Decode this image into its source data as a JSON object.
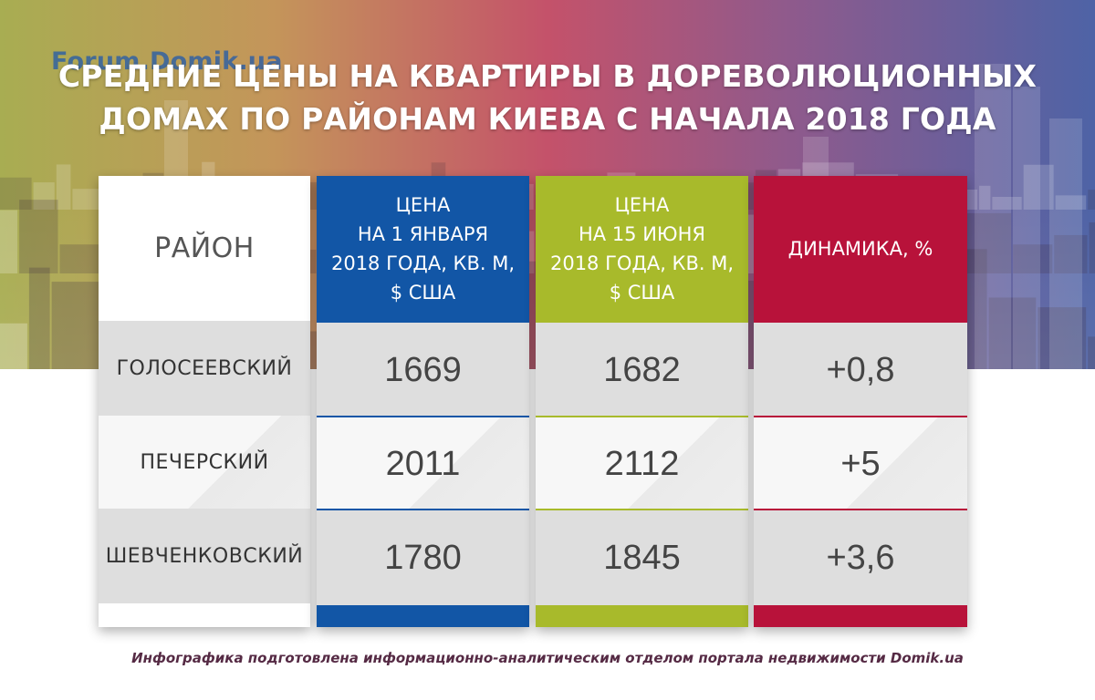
{
  "watermark": "Forum.Domik.ua",
  "title_lines": [
    "СРЕДНИЕ ЦЕНЫ НА КВАРТИРЫ В ДОРЕВОЛЮЦИОННЫХ",
    "ДОМАХ ПО РАЙОНАМ КИЕВА С НАЧАЛА 2018 ГОДА"
  ],
  "footer": "Инфографика подготовлена информационно-аналитическим отделом портала недвижимости Domik.ua",
  "colors": {
    "jan_column": "#1256a6",
    "jun_column": "#a8ba2b",
    "dynamics_column": "#b8123a",
    "footer_text": "#552a44"
  },
  "chart_data": {
    "type": "table",
    "columns": [
      {
        "key": "district",
        "header_lines": [
          "РАЙОН"
        ]
      },
      {
        "key": "jan",
        "header_lines": [
          "ЦЕНА",
          "НА 1 ЯНВАРЯ",
          "2018 ГОДА, КВ. М,",
          "$ США"
        ]
      },
      {
        "key": "jun",
        "header_lines": [
          "ЦЕНА",
          "НА 15 ИЮНЯ",
          "2018 ГОДА, КВ. М,",
          "$ США"
        ]
      },
      {
        "key": "dyn",
        "header_lines": [
          "ДИНАМИКА, %"
        ]
      }
    ],
    "rows": [
      {
        "district": "ГОЛОСЕЕВСКИЙ",
        "jan": "1669",
        "jun": "1682",
        "dyn": "+0,8"
      },
      {
        "district": "ПЕЧЕРСКИЙ",
        "jan": "2011",
        "jun": "2112",
        "dyn": "+5"
      },
      {
        "district": "ШЕВЧЕНКОВСКИЙ",
        "jan": "1780",
        "jun": "1845",
        "dyn": "+3,6"
      }
    ]
  }
}
